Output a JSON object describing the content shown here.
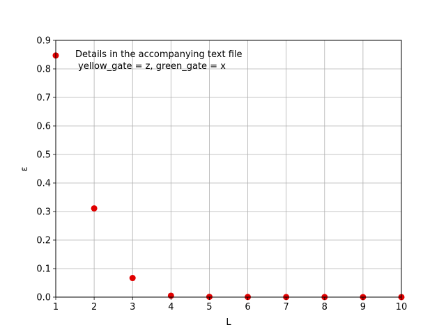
{
  "chart_data": {
    "type": "scatter",
    "xlabel": "L",
    "ylabel": "ε",
    "xlim": [
      1,
      10
    ],
    "ylim": [
      0,
      0.9
    ],
    "xticks": [
      1,
      2,
      3,
      4,
      5,
      6,
      7,
      8,
      9,
      10
    ],
    "yticks": [
      0.0,
      0.1,
      0.2,
      0.3,
      0.4,
      0.5,
      0.6,
      0.7,
      0.8,
      0.9
    ],
    "grid": true,
    "marker_color": "#e00000",
    "series": [
      {
        "x": [
          1,
          2,
          3,
          4,
          5,
          6,
          7,
          8,
          9,
          10
        ],
        "values": [
          0.847,
          0.311,
          0.067,
          0.005,
          0.001,
          0.0005,
          0.0003,
          0.0002,
          0.0001,
          0.0001
        ]
      }
    ],
    "annotation_lines": [
      "Details in the accompanying text file",
      " yellow_gate = z, green_gate = x"
    ]
  }
}
